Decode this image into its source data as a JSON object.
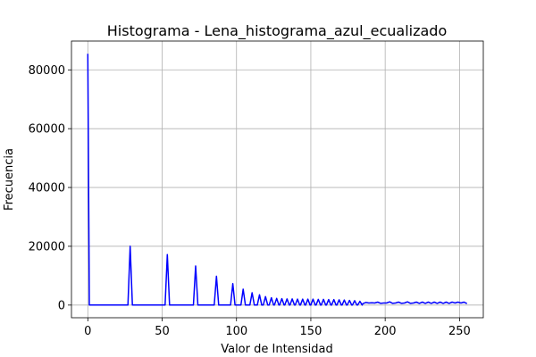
{
  "chart_data": {
    "type": "line",
    "title": "Histograma - Lena_histograma_azul_ecualizado",
    "xlabel": "Valor de Intensidad",
    "ylabel": "Frecuencia",
    "xlim": [
      -11,
      266
    ],
    "ylim": [
      -4300,
      89800
    ],
    "x_ticks": [
      0,
      50,
      100,
      150,
      200,
      250
    ],
    "y_ticks": [
      0,
      20000,
      40000,
      60000,
      80000
    ],
    "x_tick_labels": [
      "0",
      "50",
      "100",
      "150",
      "200",
      "250"
    ],
    "y_tick_labels": [
      "0",
      "20000",
      "40000",
      "60000",
      "80000"
    ],
    "grid": true,
    "series": [
      {
        "color": "#0000ff",
        "points": [
          [
            0,
            85500
          ],
          [
            1,
            0
          ],
          [
            27,
            0
          ],
          [
            28.5,
            20000
          ],
          [
            30,
            0
          ],
          [
            52,
            0
          ],
          [
            53.5,
            17200
          ],
          [
            55,
            0
          ],
          [
            71,
            0
          ],
          [
            72.5,
            13300
          ],
          [
            74,
            0
          ],
          [
            85,
            0
          ],
          [
            86.5,
            9800
          ],
          [
            88,
            0
          ],
          [
            96,
            0
          ],
          [
            97.5,
            7300
          ],
          [
            99,
            0
          ],
          [
            103,
            0
          ],
          [
            104.5,
            5400
          ],
          [
            106,
            0
          ],
          [
            109,
            0
          ],
          [
            110.5,
            4200
          ],
          [
            112,
            0
          ],
          [
            114,
            0
          ],
          [
            115.5,
            3500
          ],
          [
            117,
            0
          ],
          [
            118,
            0
          ],
          [
            119.5,
            2900
          ],
          [
            121,
            0
          ],
          [
            122,
            0
          ],
          [
            123.5,
            2500
          ],
          [
            125,
            0
          ],
          [
            125.5,
            0
          ],
          [
            127,
            2300
          ],
          [
            128.5,
            0
          ],
          [
            129,
            0
          ],
          [
            130.5,
            2200
          ],
          [
            132,
            0
          ],
          [
            132.5,
            0
          ],
          [
            134,
            2100
          ],
          [
            135.5,
            0
          ],
          [
            136,
            0
          ],
          [
            137.5,
            2100
          ],
          [
            139,
            0
          ],
          [
            139.5,
            0
          ],
          [
            141,
            2050
          ],
          [
            142.5,
            0
          ],
          [
            143,
            0
          ],
          [
            144.5,
            2000
          ],
          [
            146,
            0
          ],
          [
            146.5,
            0
          ],
          [
            148,
            2000
          ],
          [
            149.5,
            0
          ],
          [
            150,
            0
          ],
          [
            151.5,
            2000
          ],
          [
            153,
            0
          ],
          [
            153.5,
            0
          ],
          [
            155,
            1950
          ],
          [
            156.5,
            0
          ],
          [
            157,
            0
          ],
          [
            158.5,
            1950
          ],
          [
            160,
            0
          ],
          [
            160.5,
            0
          ],
          [
            162,
            1900
          ],
          [
            163.5,
            0
          ],
          [
            164,
            0
          ],
          [
            165.5,
            1850
          ],
          [
            167,
            0
          ],
          [
            167.5,
            0
          ],
          [
            169,
            1800
          ],
          [
            170.5,
            0
          ],
          [
            171,
            0
          ],
          [
            172.5,
            1700
          ],
          [
            174,
            0
          ],
          [
            174.5,
            0
          ],
          [
            176,
            1600
          ],
          [
            177.5,
            0
          ],
          [
            178,
            0
          ],
          [
            179.5,
            1500
          ],
          [
            181,
            0
          ],
          [
            181.5,
            0
          ],
          [
            183,
            1300
          ],
          [
            184.5,
            0
          ],
          [
            185,
            500
          ],
          [
            187,
            900
          ],
          [
            189,
            700
          ],
          [
            191,
            800
          ],
          [
            193,
            700
          ],
          [
            195,
            1000
          ],
          [
            197,
            600
          ],
          [
            199,
            700
          ],
          [
            201,
            700
          ],
          [
            203,
            1100
          ],
          [
            205,
            600
          ],
          [
            207,
            700
          ],
          [
            209,
            1000
          ],
          [
            211,
            600
          ],
          [
            213,
            700
          ],
          [
            215,
            1100
          ],
          [
            217,
            600
          ],
          [
            219,
            700
          ],
          [
            221,
            1000
          ],
          [
            223,
            600
          ],
          [
            225,
            1000
          ],
          [
            227,
            600
          ],
          [
            229,
            1000
          ],
          [
            231,
            600
          ],
          [
            233,
            1000
          ],
          [
            235,
            600
          ],
          [
            237,
            1000
          ],
          [
            239,
            600
          ],
          [
            241,
            1000
          ],
          [
            243,
            600
          ],
          [
            245,
            1000
          ],
          [
            247,
            700
          ],
          [
            249,
            1000
          ],
          [
            251,
            700
          ],
          [
            253,
            1000
          ],
          [
            255,
            500
          ]
        ]
      }
    ]
  }
}
